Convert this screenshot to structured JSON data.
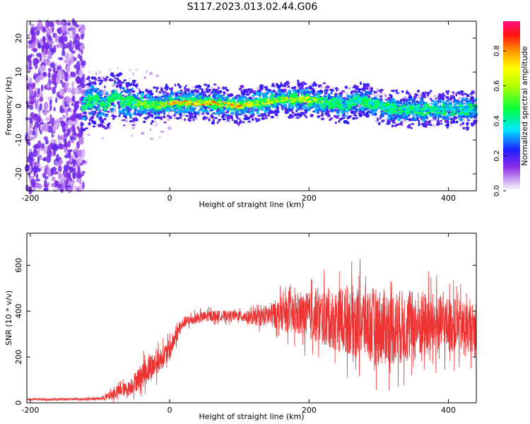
{
  "title": "S117.2023.013.02.44.G06",
  "chart_data": [
    {
      "type": "heatmap",
      "xlabel": "Height of straight line (km)",
      "ylabel": "Frequency (Hz)",
      "xlim": [
        -205,
        440
      ],
      "ylim": [
        -25,
        25
      ],
      "x_ticks": [
        -200,
        0,
        200,
        400
      ],
      "y_ticks": [
        -20,
        -10,
        0,
        10,
        20
      ],
      "colorbar": {
        "label": "Normalized spectral amplitude",
        "range": [
          0,
          0.97
        ],
        "ticks": [
          0.0,
          0.2,
          0.4,
          0.6,
          0.8
        ],
        "colormap": "rainbow (white-lavender-purple-blue-cyan-green-yellow-orange-red-magenta)"
      },
      "ridge": {
        "x": [
          -125,
          -110,
          -95,
          -80,
          -65,
          -50,
          -20,
          0,
          50,
          100,
          130,
          160,
          200,
          230,
          250,
          270,
          300,
          330,
          360,
          400,
          440
        ],
        "frequency": [
          0,
          2,
          0,
          3,
          1,
          1,
          0,
          1,
          1,
          0,
          1,
          2,
          2,
          1,
          0,
          2,
          0,
          -1,
          -1,
          -1,
          -1
        ],
        "peak_amplitude": [
          0.4,
          0.4,
          0.45,
          0.45,
          0.55,
          0.6,
          0.75,
          0.9,
          0.9,
          0.9,
          0.7,
          0.8,
          0.75,
          0.6,
          0.45,
          0.55,
          0.5,
          0.5,
          0.5,
          0.45,
          0.45
        ]
      },
      "noise_region_x": [
        -205,
        -122
      ]
    },
    {
      "type": "line",
      "xlabel": "Height of straight line (km)",
      "ylabel": "SNR (10 * v/v)",
      "xlim": [
        -205,
        440
      ],
      "ylim": [
        0,
        740
      ],
      "x_ticks": [
        -200,
        0,
        200,
        400
      ],
      "y_ticks": [
        0,
        200,
        400,
        600
      ],
      "color": "#ee3333",
      "series": [
        {
          "x": [
            -205,
            -150,
            -100,
            -90,
            -80,
            -70,
            -60,
            -50,
            -40,
            -30,
            -20,
            -10,
            0,
            10,
            20,
            40,
            60,
            80,
            100,
            120,
            140,
            160,
            180,
            200,
            220,
            240,
            260,
            280,
            300,
            320,
            340,
            360,
            380,
            400,
            420,
            440
          ],
          "mean": [
            15,
            15,
            18,
            25,
            40,
            55,
            60,
            90,
            120,
            150,
            170,
            200,
            230,
            300,
            350,
            370,
            380,
            380,
            380,
            370,
            380,
            390,
            380,
            380,
            370,
            360,
            360,
            350,
            330,
            330,
            330,
            340,
            340,
            340,
            330,
            330
          ],
          "spread": [
            5,
            6,
            8,
            20,
            30,
            35,
            40,
            55,
            70,
            80,
            70,
            60,
            60,
            45,
            30,
            30,
            30,
            28,
            28,
            40,
            60,
            90,
            110,
            130,
            150,
            170,
            190,
            200,
            210,
            210,
            200,
            190,
            170,
            150,
            140,
            130
          ]
        }
      ]
    }
  ]
}
